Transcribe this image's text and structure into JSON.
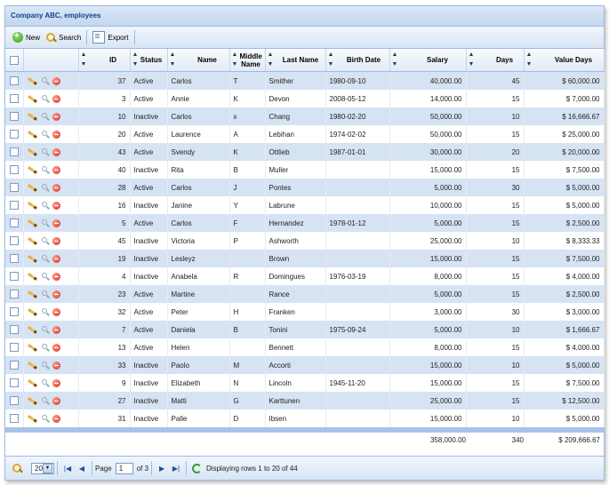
{
  "title": "Company ABC, employees",
  "toolbar": {
    "new_label": "New",
    "search_label": "Search",
    "export_label": "Export"
  },
  "columns": [
    "ID",
    "Status",
    "Name",
    "Middle Name",
    "Last Name",
    "Birth Date",
    "Salary",
    "Days",
    "Value Days"
  ],
  "rows": [
    {
      "id": "37",
      "status": "Active",
      "name": "Carlos",
      "middle": "T",
      "last": "Smither",
      "birth": "1980-09-10",
      "salary": "40,000.00",
      "days": "45",
      "value": "$ 60,000.00"
    },
    {
      "id": "3",
      "status": "Active",
      "name": "Annie",
      "middle": "K",
      "last": "Devon",
      "birth": "2008-05-12",
      "salary": "14,000.00",
      "days": "15",
      "value": "$ 7,000.00"
    },
    {
      "id": "10",
      "status": "Inactive",
      "name": "Carlos",
      "middle": "x",
      "last": "Chang",
      "birth": "1980-02-20",
      "salary": "50,000.00",
      "days": "10",
      "value": "$ 16,666.67"
    },
    {
      "id": "20",
      "status": "Active",
      "name": "Laurence",
      "middle": "A",
      "last": "Lebihan",
      "birth": "1974-02-02",
      "salary": "50,000.00",
      "days": "15",
      "value": "$ 25,000.00"
    },
    {
      "id": "43",
      "status": "Active",
      "name": "Svendy",
      "middle": "K",
      "last": "Ottlieb",
      "birth": "1987-01-01",
      "salary": "30,000.00",
      "days": "20",
      "value": "$ 20,000.00"
    },
    {
      "id": "40",
      "status": "Inactive",
      "name": "Rita",
      "middle": "B",
      "last": "Muller",
      "birth": "",
      "salary": "15,000.00",
      "days": "15",
      "value": "$ 7,500.00"
    },
    {
      "id": "28",
      "status": "Active",
      "name": "Carlos",
      "middle": "J",
      "last": "Pontes",
      "birth": "",
      "salary": "5,000.00",
      "days": "30",
      "value": "$ 5,000.00"
    },
    {
      "id": "16",
      "status": "Inactive",
      "name": "Janine",
      "middle": "Y",
      "last": "Labrune",
      "birth": "",
      "salary": "10,000.00",
      "days": "15",
      "value": "$ 5,000.00"
    },
    {
      "id": "5",
      "status": "Active",
      "name": "Carlos",
      "middle": "F",
      "last": "Hernandez",
      "birth": "1978-01-12",
      "salary": "5,000.00",
      "days": "15",
      "value": "$ 2,500.00"
    },
    {
      "id": "45",
      "status": "Inactive",
      "name": "Victoria",
      "middle": "P",
      "last": "Ashworth",
      "birth": "",
      "salary": "25,000.00",
      "days": "10",
      "value": "$ 8,333.33"
    },
    {
      "id": "19",
      "status": "Inactive",
      "name": "Lesleyz",
      "middle": "",
      "last": "Brown",
      "birth": "",
      "salary": "15,000.00",
      "days": "15",
      "value": "$ 7,500.00"
    },
    {
      "id": "4",
      "status": "Inactive",
      "name": "Anabela",
      "middle": "R",
      "last": "Domingues",
      "birth": "1976-03-19",
      "salary": "8,000.00",
      "days": "15",
      "value": "$ 4,000.00"
    },
    {
      "id": "23",
      "status": "Active",
      "name": "Martine",
      "middle": "",
      "last": "Rance",
      "birth": "",
      "salary": "5,000.00",
      "days": "15",
      "value": "$ 2,500.00"
    },
    {
      "id": "32",
      "status": "Active",
      "name": "Peter",
      "middle": "H",
      "last": "Franken",
      "birth": "",
      "salary": "3,000.00",
      "days": "30",
      "value": "$ 3,000.00"
    },
    {
      "id": "7",
      "status": "Active",
      "name": "Daniela",
      "middle": "B",
      "last": "Tonini",
      "birth": "1975-09-24",
      "salary": "5,000.00",
      "days": "10",
      "value": "$ 1,666.67"
    },
    {
      "id": "13",
      "status": "Active",
      "name": "Helen",
      "middle": "",
      "last": "Bennett",
      "birth": "",
      "salary": "8,000.00",
      "days": "15",
      "value": "$ 4,000.00"
    },
    {
      "id": "33",
      "status": "Inactive",
      "name": "Paolo",
      "middle": "M",
      "last": "Accorti",
      "birth": "",
      "salary": "15,000.00",
      "days": "10",
      "value": "$ 5,000.00"
    },
    {
      "id": "9",
      "status": "Inactive",
      "name": "Elizabeth",
      "middle": "N",
      "last": "Lincoln",
      "birth": "1945-11-20",
      "salary": "15,000.00",
      "days": "15",
      "value": "$ 7,500.00"
    },
    {
      "id": "27",
      "status": "Inactive",
      "name": "Matti",
      "middle": "G",
      "last": "Karttunen",
      "birth": "",
      "salary": "25,000.00",
      "days": "15",
      "value": "$ 12,500.00"
    },
    {
      "id": "31",
      "status": "Inactive",
      "name": "Palle",
      "middle": "D",
      "last": "Ibsen",
      "birth": "",
      "salary": "15,000.00",
      "days": "10",
      "value": "$ 5,000.00"
    }
  ],
  "totals": {
    "salary": "358,000.00",
    "days": "340",
    "value": "$ 209,666.67"
  },
  "pager": {
    "page_size": "20",
    "page_label": "Page",
    "page_value": "1",
    "of_label": "of 3",
    "display_text": "Displaying rows 1 to 20 of 44"
  },
  "colors": {
    "header_bg": "#dae7f6",
    "row_alt": "#d6e3f3",
    "border": "#99bbe8",
    "title_text": "#15428b"
  },
  "icons": {
    "new": "add-icon",
    "search": "search-icon",
    "export": "export-icon",
    "edit": "pencil-icon",
    "view": "magnifier-icon",
    "delete": "delete-icon"
  }
}
